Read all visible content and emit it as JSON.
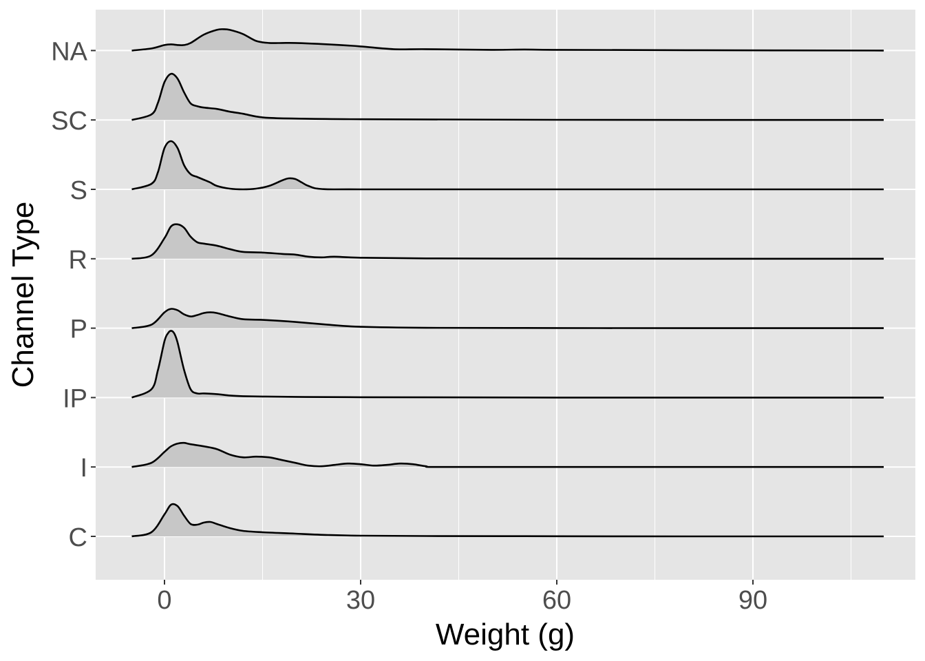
{
  "chart_data": {
    "type": "ridgeline",
    "xlabel": "Weight (g)",
    "ylabel": "Channel Type",
    "xlim": [
      -10.5,
      114
    ],
    "x_ticks": [
      0,
      30,
      60,
      90
    ],
    "x_tick_labels": [
      "0",
      "30",
      "60",
      "90"
    ],
    "grid": true,
    "colors": {
      "panel_background": "#e5e5e5",
      "grid": "#ffffff",
      "fill": "#c7c7c7",
      "line": "#000000",
      "tick_text": "#4d4d4d"
    },
    "categories": [
      "C",
      "I",
      "IP",
      "P",
      "R",
      "S",
      "SC",
      "NA"
    ],
    "series": [
      {
        "name": "C",
        "x": [
          -5,
          -2,
          0,
          1,
          2,
          3,
          4,
          5,
          6,
          7,
          8,
          10,
          12,
          15,
          20,
          25,
          30,
          40,
          60,
          80,
          100,
          110
        ],
        "y": [
          0,
          0.06,
          0.32,
          0.46,
          0.44,
          0.3,
          0.18,
          0.17,
          0.2,
          0.21,
          0.18,
          0.12,
          0.08,
          0.06,
          0.04,
          0.02,
          0.01,
          0.005,
          0.002,
          0,
          0,
          0
        ]
      },
      {
        "name": "I",
        "x": [
          -5,
          -2,
          0,
          1,
          2,
          3,
          4,
          6,
          8,
          10,
          12,
          14,
          16,
          18,
          20,
          22,
          24,
          26,
          28,
          30,
          32,
          34,
          36,
          38,
          40,
          42,
          60,
          80,
          110
        ],
        "y": [
          0,
          0.06,
          0.22,
          0.3,
          0.34,
          0.35,
          0.33,
          0.3,
          0.26,
          0.18,
          0.14,
          0.15,
          0.14,
          0.1,
          0.06,
          0.02,
          0.01,
          0.03,
          0.05,
          0.04,
          0.02,
          0.03,
          0.05,
          0.04,
          0.01,
          0,
          0,
          0,
          0
        ]
      },
      {
        "name": "IP",
        "x": [
          -5,
          -2,
          -1,
          0,
          0.5,
          1,
          1.5,
          2,
          3,
          4,
          5,
          6,
          8,
          10,
          12,
          15,
          20,
          30,
          60,
          110
        ],
        "y": [
          0,
          0.12,
          0.4,
          0.82,
          0.93,
          0.97,
          0.93,
          0.8,
          0.4,
          0.12,
          0.06,
          0.06,
          0.05,
          0.03,
          0.02,
          0.015,
          0.01,
          0.005,
          0,
          0
        ]
      },
      {
        "name": "P",
        "x": [
          -5,
          -2,
          0,
          1,
          2,
          3,
          4,
          5,
          6,
          7,
          8,
          10,
          12,
          15,
          20,
          25,
          30,
          40,
          60,
          80,
          110
        ],
        "y": [
          0,
          0.05,
          0.23,
          0.28,
          0.26,
          0.2,
          0.17,
          0.19,
          0.22,
          0.23,
          0.22,
          0.17,
          0.13,
          0.12,
          0.09,
          0.05,
          0.02,
          0.005,
          0.002,
          0,
          0
        ]
      },
      {
        "name": "R",
        "x": [
          -5,
          -2,
          0,
          1,
          2,
          3,
          4,
          5,
          6,
          8,
          10,
          12,
          15,
          18,
          20,
          22,
          24,
          26,
          30,
          40,
          60,
          80,
          110
        ],
        "y": [
          0,
          0.05,
          0.3,
          0.47,
          0.5,
          0.45,
          0.32,
          0.24,
          0.22,
          0.19,
          0.14,
          0.1,
          0.09,
          0.07,
          0.06,
          0.03,
          0.02,
          0.03,
          0.015,
          0.005,
          0.002,
          0,
          0
        ]
      },
      {
        "name": "S",
        "x": [
          -5,
          -2,
          -1,
          0,
          1,
          2,
          3,
          4,
          5,
          6,
          7,
          8,
          10,
          12,
          14,
          16,
          18,
          19,
          20,
          21,
          22,
          24,
          30,
          60,
          110
        ],
        "y": [
          0,
          0.08,
          0.25,
          0.6,
          0.7,
          0.6,
          0.35,
          0.22,
          0.18,
          0.14,
          0.1,
          0.05,
          0.01,
          0,
          0.01,
          0.05,
          0.13,
          0.16,
          0.15,
          0.1,
          0.05,
          0.005,
          0,
          0,
          0
        ]
      },
      {
        "name": "SC",
        "x": [
          -5,
          -2,
          -1,
          0,
          1,
          2,
          3,
          4,
          5,
          6,
          8,
          10,
          12,
          14,
          16,
          20,
          30,
          60,
          110
        ],
        "y": [
          0,
          0.08,
          0.25,
          0.55,
          0.67,
          0.6,
          0.4,
          0.24,
          0.2,
          0.18,
          0.16,
          0.12,
          0.09,
          0.05,
          0.03,
          0.02,
          0.01,
          0.002,
          0
        ]
      },
      {
        "name": "NA",
        "x": [
          -5,
          -2,
          0,
          1,
          2,
          3,
          4,
          6,
          8,
          9,
          10,
          12,
          14,
          16,
          18,
          20,
          25,
          30,
          35,
          40,
          50,
          55,
          60,
          80,
          110
        ],
        "y": [
          0,
          0.03,
          0.08,
          0.09,
          0.08,
          0.08,
          0.11,
          0.23,
          0.3,
          0.31,
          0.3,
          0.24,
          0.14,
          0.11,
          0.11,
          0.11,
          0.09,
          0.06,
          0.02,
          0.02,
          0.01,
          0.015,
          0.01,
          0.005,
          0
        ]
      }
    ]
  }
}
